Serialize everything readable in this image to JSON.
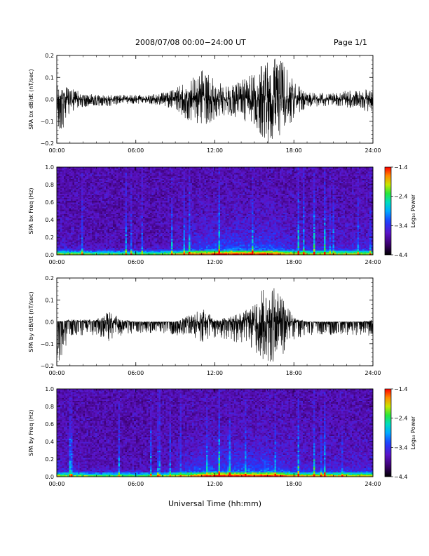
{
  "header": {
    "title": "2008/07/08  00:00−24:00 UT",
    "page": "Page 1/1"
  },
  "chart_data": [
    {
      "type": "line",
      "ylabel": "SPA bx dB/dt (nT/sec)",
      "ylim": [
        -0.2,
        0.2
      ],
      "y_ticks": [
        "0.2",
        "0.1",
        "0.0",
        "−0.1",
        "−0.2"
      ],
      "x_ticks": [
        "00:00",
        "06:00",
        "12:00",
        "18:00",
        "24:00"
      ],
      "xlim": [
        0,
        24
      ],
      "series": [
        {
          "x": [
            0,
            1,
            2,
            3,
            4,
            5,
            6,
            7,
            8,
            9,
            10,
            11,
            12,
            13,
            14,
            15,
            16,
            17,
            18,
            19,
            20,
            21,
            22,
            23,
            24
          ],
          "upper": [
            0.07,
            0.05,
            0.03,
            0.02,
            0.02,
            0.02,
            0.02,
            0.02,
            0.03,
            0.05,
            0.08,
            0.14,
            0.09,
            0.06,
            0.09,
            0.12,
            0.18,
            0.2,
            0.08,
            0.03,
            0.03,
            0.03,
            0.04,
            0.04,
            0.05
          ],
          "lower": [
            -0.2,
            -0.06,
            -0.04,
            -0.03,
            -0.03,
            -0.02,
            -0.02,
            -0.02,
            -0.03,
            -0.05,
            -0.1,
            -0.13,
            -0.09,
            -0.07,
            -0.09,
            -0.12,
            -0.2,
            -0.16,
            -0.09,
            -0.04,
            -0.03,
            -0.03,
            -0.04,
            -0.04,
            -0.07
          ]
        }
      ]
    },
    {
      "type": "heatmap",
      "ylabel": "SPA bx Freq (Hz)",
      "ylim": [
        0.0,
        1.0
      ],
      "y_ticks": [
        "1.0",
        "0.8",
        "0.6",
        "0.4",
        "0.2",
        "0.0"
      ],
      "x_ticks": [
        "00:00",
        "06:00",
        "12:00",
        "18:00",
        "24:00"
      ],
      "xlim": [
        0,
        24
      ],
      "colorbar": {
        "label": "Log₁₀ Power",
        "range": [
          -4.4,
          -1.4
        ],
        "ticks": [
          "−1.4",
          "−2.4",
          "−3.4",
          "−4.4"
        ]
      },
      "hour_activity": [
        0.3,
        0.15,
        0.1,
        0.05,
        0.05,
        0.05,
        0.05,
        0.05,
        0.1,
        0.25,
        0.45,
        0.6,
        0.65,
        0.7,
        0.7,
        0.65,
        0.75,
        0.55,
        0.4,
        0.3,
        0.3,
        0.3,
        0.3,
        0.3,
        0.3
      ]
    },
    {
      "type": "line",
      "ylabel": "SPA by dB/dt (nT/sec)",
      "ylim": [
        -0.2,
        0.2
      ],
      "y_ticks": [
        "0.2",
        "0.1",
        "0.0",
        "−0.1",
        "−0.2"
      ],
      "x_ticks": [
        "00:00",
        "06:00",
        "12:00",
        "18:00",
        "24:00"
      ],
      "xlim": [
        0,
        24
      ],
      "series": [
        {
          "x": [
            0,
            1,
            2,
            3,
            4,
            5,
            6,
            7,
            8,
            9,
            10,
            11,
            12,
            13,
            14,
            15,
            16,
            17,
            18,
            19,
            20,
            21,
            22,
            23,
            24
          ],
          "upper": [
            0.0,
            0.01,
            0.01,
            0.01,
            0.05,
            0.01,
            0.0,
            0.0,
            0.0,
            0.0,
            0.03,
            0.07,
            0.01,
            0.02,
            0.04,
            0.08,
            0.19,
            0.12,
            0.02,
            0.0,
            0.0,
            0.0,
            0.0,
            0.0,
            0.01
          ],
          "lower": [
            -0.2,
            -0.07,
            -0.06,
            -0.06,
            -0.09,
            -0.06,
            -0.05,
            -0.05,
            -0.05,
            -0.06,
            -0.07,
            -0.1,
            -0.07,
            -0.08,
            -0.1,
            -0.13,
            -0.2,
            -0.16,
            -0.08,
            -0.06,
            -0.06,
            -0.06,
            -0.06,
            -0.06,
            -0.07
          ]
        }
      ]
    },
    {
      "type": "heatmap",
      "ylabel": "SPA by Freq (Hz)",
      "ylim": [
        0.0,
        1.0
      ],
      "y_ticks": [
        "1.0",
        "0.8",
        "0.6",
        "0.4",
        "0.2",
        "0.0"
      ],
      "x_ticks": [
        "00:00",
        "06:00",
        "12:00",
        "18:00",
        "24:00"
      ],
      "xlim": [
        0,
        24
      ],
      "colorbar": {
        "label": "Log₁₀ Power",
        "range": [
          -4.4,
          -1.4
        ],
        "ticks": [
          "−1.4",
          "−2.4",
          "−3.4",
          "−4.4"
        ]
      },
      "hour_activity": [
        0.3,
        0.15,
        0.1,
        0.05,
        0.05,
        0.05,
        0.05,
        0.05,
        0.1,
        0.25,
        0.45,
        0.65,
        0.7,
        0.75,
        0.75,
        0.7,
        0.8,
        0.6,
        0.45,
        0.35,
        0.35,
        0.35,
        0.35,
        0.35,
        0.35
      ]
    }
  ],
  "xaxis_title": "Universal Time (hh:mm)"
}
